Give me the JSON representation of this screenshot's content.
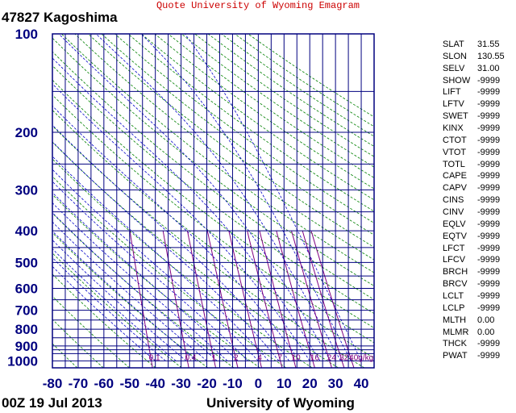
{
  "header": {
    "quote": "Quote University of Wyoming Emagram",
    "station": "47827  Kagoshima",
    "time": "00Z 19 Jul 2013",
    "footer": "University of Wyoming"
  },
  "chart_data": {
    "type": "line",
    "title": "47827  Kagoshima",
    "xlabel": "",
    "ylabel": "",
    "xlim": [
      -80,
      45
    ],
    "ylim": [
      1050,
      100
    ],
    "y_scale": "log",
    "x_ticks": [
      -80,
      -70,
      -60,
      -50,
      -40,
      -30,
      -20,
      -10,
      0,
      10,
      20,
      30,
      40
    ],
    "y_tick_labels": [
      100,
      200,
      300,
      400,
      500,
      600,
      700,
      800,
      900,
      1000
    ],
    "isobars": [
      100,
      150,
      200,
      250,
      300,
      350,
      400,
      450,
      500,
      550,
      600,
      650,
      700,
      750,
      800,
      850,
      900,
      925,
      950,
      1000,
      1050
    ],
    "grid": true,
    "series": [],
    "dry_adiabats": {
      "color": "#008000"
    },
    "moist_adiabats": {
      "color": "#0000c8"
    },
    "mixing_ratio_lines": {
      "color": "#800080",
      "label_color": "#800080",
      "values": [
        0.1,
        0.4,
        1,
        2,
        4,
        7,
        10,
        16,
        24,
        32,
        40
      ],
      "labels": [
        "0.1",
        "0.4",
        "1",
        "2",
        "4",
        "7",
        "10",
        "16",
        "24",
        "32",
        "40g/kg"
      ]
    },
    "colors": {
      "axis": "#00007f",
      "grid": "#00007f",
      "tick_label": "#00007f"
    }
  },
  "indices": [
    {
      "key": "SLAT",
      "value": "31.55"
    },
    {
      "key": "SLON",
      "value": "130.55"
    },
    {
      "key": "SELV",
      "value": "31.00"
    },
    {
      "key": "SHOW",
      "value": "-9999"
    },
    {
      "key": "LIFT",
      "value": "-9999"
    },
    {
      "key": "LFTV",
      "value": "-9999"
    },
    {
      "key": "SWET",
      "value": "-9999"
    },
    {
      "key": "KINX",
      "value": "-9999"
    },
    {
      "key": "CTOT",
      "value": "-9999"
    },
    {
      "key": "VTOT",
      "value": "-9999"
    },
    {
      "key": "TOTL",
      "value": "-9999"
    },
    {
      "key": "CAPE",
      "value": "-9999"
    },
    {
      "key": "CAPV",
      "value": "-9999"
    },
    {
      "key": "CINS",
      "value": "-9999"
    },
    {
      "key": "CINV",
      "value": "-9999"
    },
    {
      "key": "EQLV",
      "value": "-9999"
    },
    {
      "key": "EQTV",
      "value": "-9999"
    },
    {
      "key": "LFCT",
      "value": "-9999"
    },
    {
      "key": "LFCV",
      "value": "-9999"
    },
    {
      "key": "BRCH",
      "value": "-9999"
    },
    {
      "key": "BRCV",
      "value": "-9999"
    },
    {
      "key": "LCLT",
      "value": "-9999"
    },
    {
      "key": "LCLP",
      "value": "-9999"
    },
    {
      "key": "MLTH",
      "value": "0.00"
    },
    {
      "key": "MLMR",
      "value": "0.00"
    },
    {
      "key": "THCK",
      "value": "-9999"
    },
    {
      "key": "PWAT",
      "value": "-9999"
    }
  ]
}
